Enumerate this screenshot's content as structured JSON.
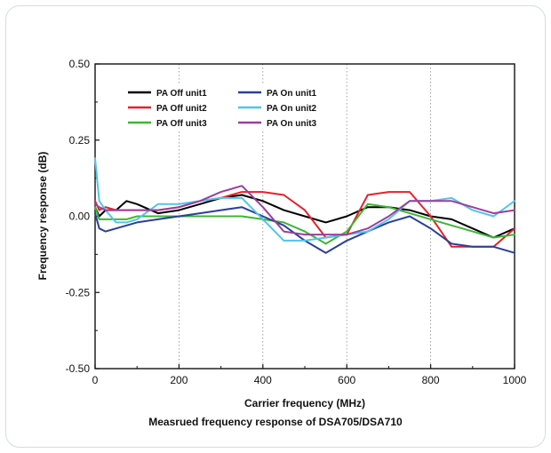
{
  "caption": "Measrued frequency response of DSA705/DSA710",
  "chart_data": {
    "type": "line",
    "xlabel": "Carrier frequency (MHz)",
    "ylabel": "Frequency response (dB)",
    "xlim": [
      0,
      1000
    ],
    "ylim": [
      -0.5,
      0.5
    ],
    "xticks": [
      0,
      200,
      400,
      600,
      800,
      1000
    ],
    "yticks": [
      -0.5,
      -0.25,
      0.0,
      0.25,
      0.5
    ],
    "xtick_labels": [
      "0",
      "200",
      "400",
      "600",
      "800",
      "1000"
    ],
    "ytick_labels": [
      "-0.50",
      "-0.25",
      "0.00",
      "0.25",
      "0.50"
    ],
    "grid": "vertical dotted at 200, 400, 600, 800",
    "legend_position": "top-left",
    "series": [
      {
        "name": "PA Off unit1",
        "color": "#000000",
        "x": [
          0,
          10,
          25,
          50,
          75,
          100,
          150,
          200,
          250,
          300,
          350,
          400,
          450,
          500,
          550,
          600,
          650,
          700,
          750,
          800,
          850,
          900,
          950,
          1000
        ],
        "y": [
          0.03,
          0.0,
          0.02,
          0.02,
          0.05,
          0.04,
          0.01,
          0.02,
          0.04,
          0.06,
          0.07,
          0.05,
          0.02,
          0.0,
          -0.02,
          0.0,
          0.03,
          0.03,
          0.02,
          0.0,
          -0.01,
          -0.04,
          -0.07,
          -0.04
        ]
      },
      {
        "name": "PA Off unit2",
        "color": "#e8202a",
        "x": [
          0,
          10,
          25,
          50,
          75,
          100,
          150,
          200,
          250,
          300,
          350,
          400,
          450,
          500,
          550,
          600,
          650,
          700,
          750,
          800,
          850,
          900,
          950,
          1000
        ],
        "y": [
          0.05,
          0.02,
          0.03,
          0.02,
          0.02,
          0.02,
          0.02,
          0.03,
          0.05,
          0.06,
          0.08,
          0.08,
          0.07,
          0.02,
          -0.07,
          -0.06,
          0.07,
          0.08,
          0.08,
          0.0,
          -0.1,
          -0.1,
          -0.1,
          -0.04
        ]
      },
      {
        "name": "PA Off unit3",
        "color": "#3db634",
        "x": [
          0,
          10,
          25,
          50,
          75,
          100,
          150,
          200,
          250,
          300,
          350,
          400,
          450,
          500,
          550,
          600,
          650,
          700,
          750,
          800,
          850,
          900,
          950,
          1000
        ],
        "y": [
          0.03,
          -0.01,
          -0.01,
          -0.01,
          -0.01,
          0.0,
          0.0,
          0.0,
          0.0,
          0.0,
          0.0,
          -0.01,
          -0.02,
          -0.05,
          -0.09,
          -0.05,
          0.04,
          0.03,
          0.01,
          -0.01,
          -0.03,
          -0.05,
          -0.07,
          -0.06
        ]
      },
      {
        "name": "PA On unit1",
        "color": "#2b3f9a",
        "x": [
          0,
          10,
          25,
          50,
          75,
          100,
          150,
          200,
          250,
          300,
          350,
          400,
          450,
          500,
          550,
          600,
          650,
          700,
          750,
          800,
          850,
          900,
          950,
          1000
        ],
        "y": [
          0.01,
          -0.04,
          -0.05,
          -0.04,
          -0.03,
          -0.02,
          -0.01,
          0.0,
          0.01,
          0.02,
          0.03,
          0.0,
          -0.03,
          -0.08,
          -0.12,
          -0.08,
          -0.05,
          -0.02,
          0.0,
          -0.04,
          -0.09,
          -0.1,
          -0.1,
          -0.12
        ]
      },
      {
        "name": "PA On unit2",
        "color": "#4fc6ea",
        "x": [
          0,
          10,
          25,
          50,
          75,
          100,
          150,
          200,
          250,
          300,
          350,
          400,
          450,
          500,
          550,
          600,
          650,
          700,
          750,
          800,
          850,
          900,
          950,
          1000
        ],
        "y": [
          0.19,
          0.05,
          0.02,
          -0.02,
          -0.02,
          -0.01,
          0.04,
          0.04,
          0.05,
          0.06,
          0.06,
          -0.01,
          -0.08,
          -0.08,
          -0.07,
          -0.06,
          -0.05,
          -0.01,
          0.05,
          0.05,
          0.06,
          0.02,
          0.0,
          0.05
        ]
      },
      {
        "name": "PA On unit3",
        "color": "#9b3f9c",
        "x": [
          0,
          10,
          25,
          50,
          75,
          100,
          150,
          200,
          250,
          300,
          350,
          400,
          450,
          500,
          550,
          600,
          650,
          700,
          750,
          800,
          850,
          900,
          950,
          1000
        ],
        "y": [
          0.04,
          0.03,
          0.02,
          0.02,
          0.02,
          0.02,
          0.02,
          0.03,
          0.05,
          0.08,
          0.1,
          0.03,
          -0.05,
          -0.06,
          -0.06,
          -0.06,
          -0.04,
          0.0,
          0.05,
          0.05,
          0.05,
          0.03,
          0.01,
          0.02
        ]
      }
    ]
  }
}
